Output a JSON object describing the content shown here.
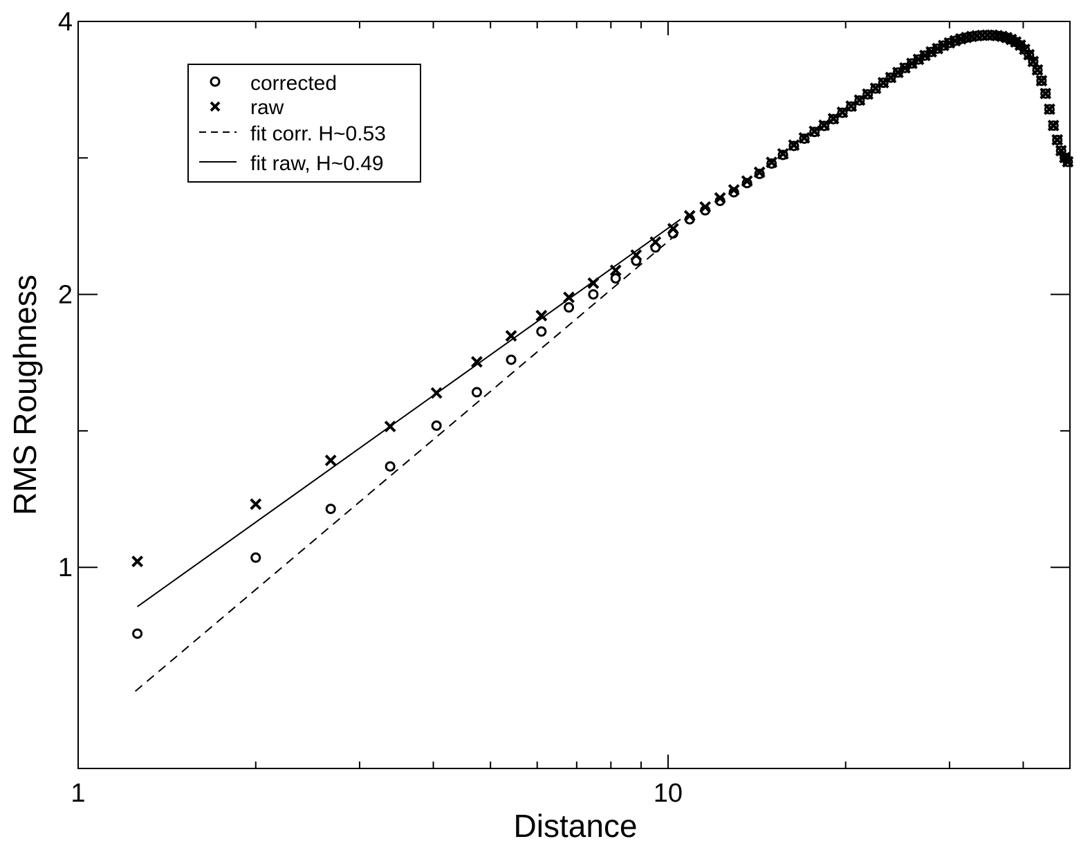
{
  "chart_data": {
    "type": "scatter",
    "title": "",
    "xlabel": "Distance",
    "ylabel": "RMS Roughness",
    "xscale": "log",
    "yscale": "log",
    "xlim": [
      1,
      48
    ],
    "ylim": [
      0.6,
      4
    ],
    "x_ticks": [
      1,
      10
    ],
    "x_tick_labels": [
      "1",
      "10"
    ],
    "y_ticks": [
      1,
      2,
      4
    ],
    "y_tick_labels": [
      "1",
      "2",
      "4"
    ],
    "grid": false,
    "legend_position": "top-left",
    "series": [
      {
        "name": "corrected",
        "marker": "circle",
        "x": [
          1.26,
          2.0,
          2.68,
          3.38,
          4.05,
          4.74,
          5.42,
          6.1,
          6.79,
          7.47,
          8.15,
          8.83,
          9.52,
          10.2,
          10.88,
          11.56,
          12.25,
          12.93,
          13.61,
          14.29,
          14.98,
          15.66,
          16.34,
          17.02,
          17.71,
          18.39,
          19.07,
          19.75,
          20.44,
          21.12,
          21.8,
          22.48,
          23.17,
          23.85,
          24.53,
          25.21,
          25.9,
          26.58,
          27.26,
          27.94,
          28.63,
          29.31,
          29.99,
          30.67,
          31.36,
          32.04,
          32.72,
          33.4,
          34.09,
          34.77,
          35.45,
          36.13,
          36.82,
          37.5,
          38.18,
          38.86,
          39.55,
          40.23,
          40.91,
          41.59,
          42.28,
          42.96,
          43.64,
          44.32,
          45.01,
          45.69,
          46.37,
          47.05,
          47.6
        ],
        "y": [
          0.845,
          1.025,
          1.16,
          1.292,
          1.433,
          1.56,
          1.694,
          1.82,
          1.935,
          2.0,
          2.083,
          2.178,
          2.253,
          2.335,
          2.42,
          2.476,
          2.536,
          2.592,
          2.653,
          2.716,
          2.788,
          2.85,
          2.916,
          2.97,
          3.021,
          3.068,
          3.121,
          3.172,
          3.223,
          3.273,
          3.324,
          3.373,
          3.423,
          3.468,
          3.513,
          3.554,
          3.595,
          3.632,
          3.668,
          3.702,
          3.733,
          3.762,
          3.787,
          3.808,
          3.826,
          3.839,
          3.849,
          3.856,
          3.86,
          3.862,
          3.862,
          3.857,
          3.85,
          3.838,
          3.82,
          3.796,
          3.765,
          3.725,
          3.675,
          3.612,
          3.536,
          3.44,
          3.33,
          3.2,
          3.07,
          2.96,
          2.88,
          2.83,
          2.8
        ]
      },
      {
        "name": "raw",
        "marker": "x",
        "x": [
          1.26,
          2.0,
          2.68,
          3.38,
          4.05,
          4.74,
          5.42,
          6.1,
          6.79,
          7.47,
          8.15,
          8.83,
          9.52,
          10.2,
          10.88,
          11.56,
          12.25,
          12.93,
          13.61,
          14.29,
          14.98,
          15.66,
          16.34,
          17.02,
          17.71,
          18.39,
          19.07,
          19.75,
          20.44,
          21.12,
          21.8,
          22.48,
          23.17,
          23.85,
          24.53,
          25.21,
          25.9,
          26.58,
          27.26,
          27.94,
          28.63,
          29.31,
          29.99,
          30.67,
          31.36,
          32.04,
          32.72,
          33.4,
          34.09,
          34.77,
          35.45,
          36.13,
          36.82,
          37.5,
          38.18,
          38.86,
          39.55,
          40.23,
          40.91,
          41.59,
          42.28,
          42.96,
          43.64,
          44.32,
          45.01,
          45.69,
          46.37,
          47.05,
          47.6
        ],
        "y": [
          1.015,
          1.174,
          1.312,
          1.43,
          1.557,
          1.685,
          1.8,
          1.895,
          1.985,
          2.058,
          2.126,
          2.21,
          2.284,
          2.363,
          2.442,
          2.497,
          2.555,
          2.608,
          2.667,
          2.727,
          2.797,
          2.858,
          2.922,
          2.976,
          3.026,
          3.073,
          3.125,
          3.176,
          3.226,
          3.276,
          3.326,
          3.375,
          3.424,
          3.469,
          3.514,
          3.555,
          3.596,
          3.633,
          3.669,
          3.703,
          3.734,
          3.763,
          3.788,
          3.809,
          3.827,
          3.84,
          3.85,
          3.857,
          3.861,
          3.863,
          3.863,
          3.858,
          3.851,
          3.839,
          3.821,
          3.797,
          3.766,
          3.726,
          3.676,
          3.613,
          3.537,
          3.441,
          3.331,
          3.201,
          3.071,
          2.961,
          2.881,
          2.831,
          2.801
        ]
      },
      {
        "name": "fit corr. H~0.53",
        "style": "dashed-line",
        "x": [
          1.25,
          10.5
        ],
        "y": [
          0.73,
          2.35
        ]
      },
      {
        "name": "fit raw, H~0.49",
        "style": "solid-line",
        "x": [
          1.26,
          10.5
        ],
        "y": [
          0.905,
          2.42
        ]
      }
    ]
  }
}
